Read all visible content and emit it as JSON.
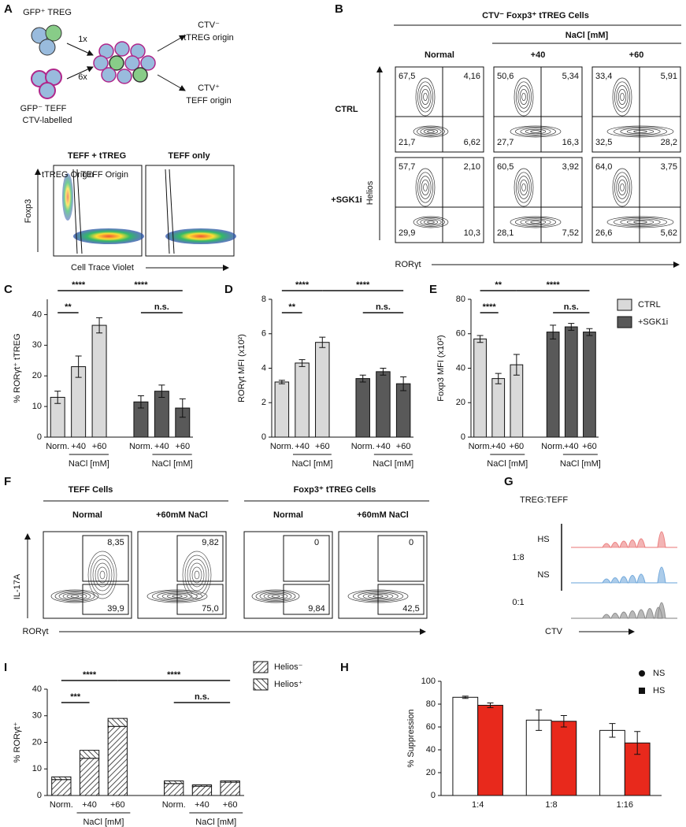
{
  "chart_data": [
    {
      "type": "bar",
      "label": "C",
      "ylabel": "% RORγt⁺ tTREG",
      "ylim": [
        0,
        45
      ],
      "yticks": [
        0,
        10,
        20,
        30,
        40
      ],
      "categories": [
        "Norm.",
        "+40",
        "+60",
        "Norm.",
        "+40",
        "+60"
      ],
      "group_labels": [
        "NaCl [mM]",
        "NaCl [mM]"
      ],
      "series": [
        {
          "color": "#d9d9d9",
          "values": [
            13,
            23,
            36.5,
            null,
            null,
            null
          ],
          "errors": [
            2,
            3.5,
            2.5,
            null,
            null,
            null
          ]
        },
        {
          "color": "#595959",
          "values": [
            null,
            null,
            null,
            11.5,
            15,
            9.5
          ],
          "errors": [
            null,
            null,
            null,
            2,
            2,
            3
          ]
        }
      ],
      "annotations": [
        "**",
        "****",
        "****",
        "n.s."
      ]
    },
    {
      "type": "bar",
      "label": "D",
      "ylabel": "RORγt MFI (x10²)",
      "ylim": [
        0,
        8
      ],
      "yticks": [
        0,
        2,
        4,
        6,
        8
      ],
      "categories": [
        "Norm.",
        "+40",
        "+60",
        "Norm.",
        "+40",
        "+60"
      ],
      "group_labels": [
        "NaCl [mM]",
        "NaCl [mM]"
      ],
      "series": [
        {
          "color": "#d9d9d9",
          "values": [
            3.2,
            4.3,
            5.5,
            null,
            null,
            null
          ],
          "errors": [
            0.1,
            0.2,
            0.3,
            null,
            null,
            null
          ]
        },
        {
          "color": "#595959",
          "values": [
            null,
            null,
            null,
            3.4,
            3.8,
            3.1
          ],
          "errors": [
            null,
            null,
            null,
            0.2,
            0.2,
            0.4
          ]
        }
      ],
      "annotations": [
        "**",
        "****",
        "****",
        "n.s."
      ]
    },
    {
      "type": "bar",
      "label": "E",
      "ylabel": "Foxp3 MFI (x10²)",
      "ylim": [
        0,
        80
      ],
      "yticks": [
        0,
        20,
        40,
        60,
        80
      ],
      "categories": [
        "Norm.",
        "+40",
        "+60",
        "Norm.",
        "+40",
        "+60"
      ],
      "group_labels": [
        "NaCl [mM]",
        "NaCl [mM]"
      ],
      "series": [
        {
          "name": "CTRL",
          "color": "#d9d9d9",
          "values": [
            57,
            34,
            42,
            null,
            null,
            null
          ],
          "errors": [
            2,
            3,
            6,
            null,
            null,
            null
          ]
        },
        {
          "name": "+SGK1i",
          "color": "#595959",
          "values": [
            null,
            null,
            null,
            61,
            64,
            61
          ],
          "errors": [
            null,
            null,
            null,
            4,
            2,
            2
          ]
        }
      ],
      "annotations": [
        "****",
        "**",
        "****",
        "n.s."
      ]
    },
    {
      "type": "bar",
      "label": "I",
      "ylabel": "% RORγt⁺",
      "ylim": [
        0,
        40
      ],
      "yticks": [
        0,
        10,
        20,
        30,
        40
      ],
      "stacked": true,
      "categories": [
        "Norm.",
        "+40",
        "+60",
        "Norm.",
        "+40",
        "+60"
      ],
      "group_labels": [
        "NaCl [mM]",
        "NaCl [mM]"
      ],
      "series": [
        {
          "name": "Helios⁻",
          "color": "#ffffff",
          "hatch": "forward",
          "values": [
            6,
            14,
            26,
            4.5,
            3.5,
            5
          ]
        },
        {
          "name": "Helios⁺",
          "color": "#ffffff",
          "hatch": "backward",
          "values": [
            1,
            3,
            3,
            1,
            0.5,
            0.5
          ]
        }
      ],
      "annotations": [
        "***",
        "****",
        "****",
        "n.s."
      ]
    },
    {
      "type": "bar",
      "label": "H",
      "ylabel": "% Suppression",
      "ylim": [
        0,
        100
      ],
      "yticks": [
        0,
        20,
        40,
        60,
        80,
        100
      ],
      "categories": [
        "1:4",
        "1:8",
        "1:16"
      ],
      "series": [
        {
          "name": "NS",
          "color": "#ffffff",
          "marker": "circle",
          "values": [
            86,
            66,
            57
          ],
          "errors": [
            1,
            9,
            6
          ]
        },
        {
          "name": "HS",
          "color": "#e8291c",
          "marker": "square",
          "values": [
            79,
            65,
            46
          ],
          "errors": [
            2,
            5,
            10
          ]
        }
      ]
    }
  ],
  "panels": {
    "a": {
      "label": "A",
      "cells": [
        "GFP⁺ TREG",
        "GFP⁻ TEFF",
        "CTV-labelled"
      ],
      "ratios": [
        "1x",
        "6x"
      ],
      "outcomes": [
        "CTV⁻",
        "tTREG origin",
        "CTV⁺",
        "TEFF origin"
      ],
      "plots": [
        "TEFF + tTREG",
        "TEFF only"
      ],
      "gates": [
        "tTREG Origin",
        "TEFF Origin"
      ],
      "ylabel": "Foxp3",
      "xlabel": "Cell Trace Violet"
    },
    "b": {
      "label": "B",
      "title": "CTV⁻ Foxp3⁺ tTREG Cells",
      "group": "NaCl [mM]",
      "columns": [
        "Normal",
        "+40",
        "+60"
      ],
      "rows": [
        "CTRL",
        "+SGK1i"
      ],
      "ylabel": "Helios",
      "xlabel": "RORγt",
      "quadrants": [
        [
          [
            "67,5",
            "4,16",
            "21,7",
            "6,62"
          ],
          [
            "50,6",
            "5,34",
            "27,7",
            "16,3"
          ],
          [
            "33,4",
            "5,91",
            "32,5",
            "28,2"
          ]
        ],
        [
          [
            "57,7",
            "2,10",
            "29,9",
            "10,3"
          ],
          [
            "60,5",
            "3,92",
            "28,1",
            "7,52"
          ],
          [
            "64,0",
            "3,75",
            "26,6",
            "5,62"
          ]
        ]
      ]
    },
    "f": {
      "label": "F",
      "groups": [
        "TEFF Cells",
        "Foxp3⁺ tTREG Cells"
      ],
      "columns": [
        "Normal",
        "+60mM NaCl",
        "Normal",
        "+60mM NaCl"
      ],
      "gates": [
        [
          "8,35",
          "39,9"
        ],
        [
          "9,82",
          "75,0"
        ],
        [
          "0",
          "9,84"
        ],
        [
          "0",
          "42,5"
        ]
      ],
      "ylabel": "IL-17A",
      "xlabel": "RORγt"
    },
    "g": {
      "label": "G",
      "title": "TREG:TEFF",
      "conditions": [
        "HS",
        "NS"
      ],
      "ratios": [
        "1:8",
        "0:1"
      ],
      "xlabel": "CTV"
    }
  }
}
